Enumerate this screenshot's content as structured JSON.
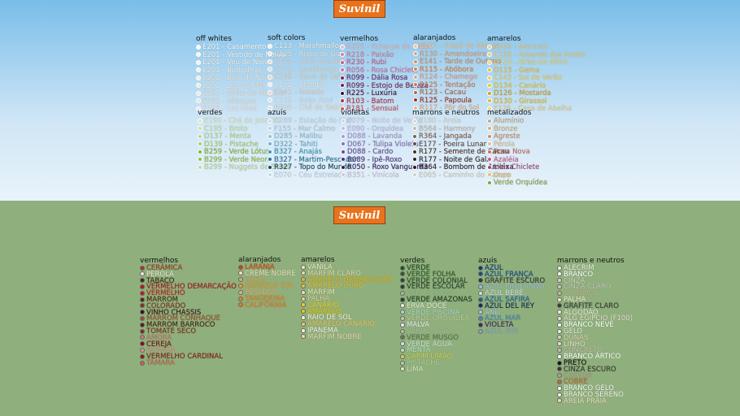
{
  "top": {
    "logo": "Suvinil",
    "groups": [
      {
        "title": "off whites",
        "items": [
          {
            "label": "E201 - Casamento",
            "color": "#fdfdf6"
          },
          {
            "label": "E201 - Vestido de Noiva",
            "color": "#f8f6ee"
          },
          {
            "label": "E201 - Véu de Noiva",
            "color": "#f5f2ea"
          },
          {
            "label": "E201 - Borbulhas",
            "color": "#f3efe4"
          },
          {
            "label": "E201 - Bolo de Noiva",
            "color": "#f0ebdf"
          },
          {
            "label": "E201 - Lua de Mel",
            "color": "#efe9dc"
          },
          {
            "label": "E201 - Noite de Núpcias",
            "color": "#ece6da"
          },
          {
            "label": "E201 - Alianças",
            "color": "#eae4d6"
          },
          {
            "label": "E163 - Luz Rosa",
            "color": "#f2e6e4"
          }
        ]
      },
      {
        "title": "soft colors",
        "items": [
          {
            "label": "C113 - Marshmallow",
            "color": "#f6efe2"
          },
          {
            "label": "C125 - Risco de Giz",
            "color": "#efe7da"
          },
          {
            "label": "C144 - Sete Pecados",
            "color": "#ead9cf"
          },
          {
            "label": "C119 - Lembrança",
            "color": "#e6dcc8"
          },
          {
            "label": "C120 - Doce de Leite",
            "color": "#e9d6bc"
          },
          {
            "label": "C132 - Algodão",
            "color": "#eeeadf"
          },
          {
            "label": "C141 - Rosado",
            "color": "#ead2ce"
          },
          {
            "label": "C122 - Beijo Azul",
            "color": "#d9e2ea"
          },
          {
            "label": "B009 - Chá de Bebê",
            "color": "#e8e0d0"
          }
        ]
      },
      {
        "title": "vermelhos",
        "items": [
          {
            "label": "R225 - Echarpe de Seda",
            "color": "#e8b8c0"
          },
          {
            "label": "R218 - Paixão",
            "color": "#d88098"
          },
          {
            "label": "R230 - Rubi",
            "color": "#c86088"
          },
          {
            "label": "R056 - Rosa Chiclete",
            "color": "#d070a0"
          },
          {
            "label": "R099 - Dália Rosa",
            "color": "#6a2a6a"
          },
          {
            "label": "R099 - Estojo de Beleza",
            "color": "#7a2050"
          },
          {
            "label": "R225 - Luxúria",
            "color": "#4a1030"
          },
          {
            "label": "R103 - Batom",
            "color": "#c03040"
          },
          {
            "label": "R181 - Sensual",
            "color": "#d05060"
          }
        ]
      },
      {
        "title": "alaranjados",
        "items": [
          {
            "label": "E167 - Frapê de Manga",
            "color": "#f0c898"
          },
          {
            "label": "R130 - Amendoeira",
            "color": "#e0a070"
          },
          {
            "label": "E141 - Tarde de Outono",
            "color": "#d89060"
          },
          {
            "label": "R115 - Abóbora",
            "color": "#e08040"
          },
          {
            "label": "R124 - Chamego",
            "color": "#e0a088"
          },
          {
            "label": "R125 - Tentação",
            "color": "#d87850"
          },
          {
            "label": "R123 - Cacau",
            "color": "#b86848"
          },
          {
            "label": "R125 - Papoula",
            "color": "#a83020"
          },
          {
            "label": "R117 - Pôr do Sol",
            "color": "#e8b080"
          }
        ]
      },
      {
        "title": "amarelos",
        "items": [
          {
            "label": "C140 - Marmelo",
            "color": "#e8d090"
          },
          {
            "label": "C130 - Amarelo dos Andes",
            "color": "#f0d070"
          },
          {
            "label": "D120 - Brisa de Milho",
            "color": "#f0d878"
          },
          {
            "label": "D115 - Gema",
            "color": "#f0c040"
          },
          {
            "label": "C142 - Sol de Verão",
            "color": "#f0d060"
          },
          {
            "label": "D134 - Canário",
            "color": "#e8c830"
          },
          {
            "label": "D126 - Mostarda",
            "color": "#d0a020"
          },
          {
            "label": "D130 - Girassol",
            "color": "#e8b820"
          },
          {
            "label": "E125 - Casa de Abelha",
            "color": "#e8d090"
          }
        ]
      },
      {
        "title": "verdes",
        "items": [
          {
            "label": "E190 - Chá de Jasmim",
            "color": "#dce8c0"
          },
          {
            "label": "C195 - Broto",
            "color": "#c8e0a0"
          },
          {
            "label": "D137 - Menta",
            "color": "#b0d890"
          },
          {
            "label": "D139 - Pistache",
            "color": "#a8d070"
          },
          {
            "label": "B259 - Verde Lótus",
            "color": "#80b830"
          },
          {
            "label": "B299 - Verde Neon",
            "color": "#90c040"
          },
          {
            "label": "B299 - Nuggets de Ervas",
            "color": "#c0d8a0"
          }
        ]
      },
      {
        "title": "azuis",
        "items": [
          {
            "label": "C289 - Estação do Mar",
            "color": "#c8dde8"
          },
          {
            "label": "F155 - Mar Calmo",
            "color": "#b8d0e0"
          },
          {
            "label": "D285 - Malibu",
            "color": "#98c0d8"
          },
          {
            "label": "D322 - Tahiti",
            "color": "#70b0d0"
          },
          {
            "label": "B327 - Anajás",
            "color": "#3898b8"
          },
          {
            "label": "B327 - Martim-Pescador",
            "color": "#207898"
          },
          {
            "label": "R327 - Topo do Mundo",
            "color": "#104860"
          },
          {
            "label": "E070 - Céu Estrelado",
            "color": "#c8d8e8"
          }
        ]
      },
      {
        "title": "violetas",
        "items": [
          {
            "label": "E079 - Noite de Verão",
            "color": "#d8d0e8"
          },
          {
            "label": "E090 - Orquídea",
            "color": "#c8b8e0"
          },
          {
            "label": "D088 - Lavanda",
            "color": "#a898d0"
          },
          {
            "label": "D067 - Tulipa Violeta",
            "color": "#8870b8"
          },
          {
            "label": "D088 - Cardo",
            "color": "#6a4a98"
          },
          {
            "label": "B089 - Ipê-Roxo",
            "color": "#503080"
          },
          {
            "label": "R050 - Roxo Vanguarda",
            "color": "#301858"
          },
          {
            "label": "B351 - Vinícola",
            "color": "#d0c8e0"
          }
        ]
      },
      {
        "title": "marrons e neutros",
        "items": [
          {
            "label": "E180 - Areia",
            "color": "#e0d8c8"
          },
          {
            "label": "B564 - Harmony",
            "color": "#c8b8a8"
          },
          {
            "label": "R364 - Jangada",
            "color": "#806050"
          },
          {
            "label": "E177 - Poeira Lunar",
            "color": "#605048"
          },
          {
            "label": "R177 - Semente de Cacau",
            "color": "#503020"
          },
          {
            "label": "R177 - Noite de Gala",
            "color": "#302020"
          },
          {
            "label": "R364 - Bombom de Ameixa",
            "color": "#301828"
          },
          {
            "label": "E065 - Caminho do Campo",
            "color": "#d8d0c0"
          }
        ]
      },
      {
        "title": "metalizados",
        "items": [
          {
            "label": "Alumínio",
            "color": "#c8a880"
          },
          {
            "label": "Bronze",
            "color": "#d8b070"
          },
          {
            "label": "Agreste",
            "color": "#c89060"
          },
          {
            "label": "Pérola",
            "color": "#e0c090"
          },
          {
            "label": "Rosa Nova",
            "color": "#c87060"
          },
          {
            "label": "Azaléia",
            "color": "#c85880"
          },
          {
            "label": "Lilás Chiclete",
            "color": "#a04878"
          },
          {
            "label": "Ouro",
            "color": "#e0c070"
          },
          {
            "label": "Verde Orquídea",
            "color": "#88a048"
          }
        ]
      }
    ]
  },
  "bottom": {
    "logo": "Suvinil",
    "groups": [
      {
        "title": "vermelhos",
        "items": [
          {
            "label": "CERÂMICA",
            "color": "#a03828"
          },
          {
            "label": "PÉROLA",
            "color": "#f0e8d8"
          },
          {
            "label": "TABACO",
            "color": "#402818"
          },
          {
            "label": "VERMELHO DEMARCAÇÃO",
            "color": "#a81818"
          },
          {
            "label": "VERMELHO",
            "color": "#c81818"
          },
          {
            "label": "MARROM",
            "color": "#502818"
          },
          {
            "label": "COLORADO",
            "color": "#803020"
          },
          {
            "label": "VINHO CHASSIS",
            "color": "#3a1010"
          },
          {
            "label": "MARROM CONHAQUE",
            "color": "#985030"
          },
          {
            "label": "MARROM BARROCO",
            "color": "#502010"
          },
          {
            "label": "TOMATE SECO",
            "color": "#882818"
          },
          {
            "label": "AMORA",
            "color": "#c87870"
          },
          {
            "label": "CEREJA",
            "color": "#781010"
          },
          {
            "label": "ROSADA",
            "color": "#d09888"
          },
          {
            "label": "VERMELHO CARDINAL",
            "color": "#901818"
          },
          {
            "label": "TÂMARA",
            "color": "#c86048"
          }
        ]
      },
      {
        "title": "alaranjados",
        "items": [
          {
            "label": "LARANJA",
            "color": "#d84010"
          },
          {
            "label": "CREME NOBRE",
            "color": "#f0e0c0"
          },
          {
            "label": "AREIA",
            "color": "#d8a860"
          },
          {
            "label": "AMARELO SOL",
            "color": "#e8a030"
          },
          {
            "label": "PÊSSEGO",
            "color": "#e8b070"
          },
          {
            "label": "TANGERINA",
            "color": "#e88020"
          },
          {
            "label": "CALIFÓRNIA",
            "color": "#e87828"
          }
        ]
      },
      {
        "title": "amarelos",
        "items": [
          {
            "label": "VANILA",
            "color": "#f0e8c8"
          },
          {
            "label": "MARFIM CLARO",
            "color": "#e8d8a0"
          },
          {
            "label": "AMARELO DEMARCAÇÃO",
            "color": "#e8b810"
          },
          {
            "label": "AMARELO OURO",
            "color": "#e8c030"
          },
          {
            "label": "MARFIM",
            "color": "#f0e0b0"
          },
          {
            "label": "PALHA",
            "color": "#e0d098"
          },
          {
            "label": "CANÁRIO",
            "color": "#f0d020"
          },
          {
            "label": "AMARELO",
            "color": "#f0c800"
          },
          {
            "label": "RAIO DE SOL",
            "color": "#f8f0d0"
          },
          {
            "label": "AMARELO CANÁRIO",
            "color": "#e8c860"
          },
          {
            "label": "IPANEMA",
            "color": "#f8f0e0"
          },
          {
            "label": "MARFIM NOBRE",
            "color": "#e8d8b0"
          }
        ]
      },
      {
        "title": "verdes",
        "items": [
          {
            "label": "VERDE",
            "color": "#205020"
          },
          {
            "label": "VERDE FOLHA",
            "color": "#305828"
          },
          {
            "label": "VERDE COLONIAL",
            "color": "#284828"
          },
          {
            "label": "VERDE ESCOLAR",
            "color": "#284030"
          },
          {
            "label": "VERDE CLARO",
            "color": "#98c090"
          },
          {
            "label": "VERDE AMAZONAS",
            "color": "#204028"
          },
          {
            "label": "ERVA DOCE",
            "color": "#e8f0d8"
          },
          {
            "label": "VERDE PISCINA",
            "color": "#a8d8c8"
          },
          {
            "label": "VERDE ORQUÍDEA",
            "color": "#b8d098"
          },
          {
            "label": "MALVA",
            "color": "#f0e8f0"
          },
          {
            "label": "VERDE MATA",
            "color": "#a8c098"
          },
          {
            "label": "VERDE MUSGO",
            "color": "#607848"
          },
          {
            "label": "VERDE ÁGUA",
            "color": "#c8e8d8"
          },
          {
            "label": "MENTA",
            "color": "#b8e0c0"
          },
          {
            "label": "CAPIM LIMÃO",
            "color": "#d0d050"
          },
          {
            "label": "PISTACHE",
            "color": "#b0d098"
          },
          {
            "label": "LIMA",
            "color": "#d8e8c0"
          }
        ]
      },
      {
        "title": "azuis",
        "items": [
          {
            "label": "AZUL",
            "color": "#103878"
          },
          {
            "label": "AZUL FRANÇA",
            "color": "#184890"
          },
          {
            "label": "GRAFITE ESCURO",
            "color": "#303438"
          },
          {
            "label": "AZUL PROFUNDO",
            "color": "#a0c0d8"
          },
          {
            "label": "AZUL BEBÊ",
            "color": "#c8e0f0"
          },
          {
            "label": "AZUL SAFIRA",
            "color": "#2060a0"
          },
          {
            "label": "AZUL DEL REY",
            "color": "#102858"
          },
          {
            "label": "ANIL",
            "color": "#a8c8e0"
          },
          {
            "label": "AZUL MAR",
            "color": "#4888b8"
          },
          {
            "label": "VIOLETA",
            "color": "#402860"
          },
          {
            "label": "AZUL IRIS",
            "color": "#88a8c8"
          }
        ]
      },
      {
        "title": "marrons e neutros",
        "items": [
          {
            "label": "ALECRIM",
            "color": "#f0f0e8"
          },
          {
            "label": "BRANCO",
            "color": "#ffffff"
          },
          {
            "label": "CINZA",
            "color": "#d0d0c8"
          },
          {
            "label": "CINZA CLARO",
            "color": "#c8c8c0"
          },
          {
            "label": "CAMURÇA",
            "color": "#c8b898"
          },
          {
            "label": "PALHA",
            "color": "#f0e8d0"
          },
          {
            "label": "GRAFITE CLARO",
            "color": "#383838"
          },
          {
            "label": "ALGODÃO",
            "color": "#f0ece0"
          },
          {
            "label": "ALG EGÍPCIO (F100)",
            "color": "#e8e0d0"
          },
          {
            "label": "BRANCO NEVE",
            "color": "#ffffff"
          },
          {
            "label": "GELO",
            "color": "#e8ece8"
          },
          {
            "label": "DUNAS",
            "color": "#e0d0b8"
          },
          {
            "label": "LINHO",
            "color": "#e8dcc8"
          },
          {
            "label": "CONCRETO",
            "color": "#c8c0b0"
          },
          {
            "label": "BRANCO ÁRTICO",
            "color": "#ffffff"
          },
          {
            "label": "PRETO",
            "color": "#101010"
          },
          {
            "label": "CINZA ESCURO",
            "color": "#383830"
          },
          {
            "label": "CASTOR",
            "color": "#b0a090"
          },
          {
            "label": "COBRE",
            "color": "#c06838"
          },
          {
            "label": "BRANCO GELO",
            "color": "#f8f8f4"
          },
          {
            "label": "BRANCO SERENO",
            "color": "#f4f2ea"
          },
          {
            "label": "AREIA PRAIA",
            "color": "#e8dcc0"
          }
        ]
      }
    ]
  }
}
